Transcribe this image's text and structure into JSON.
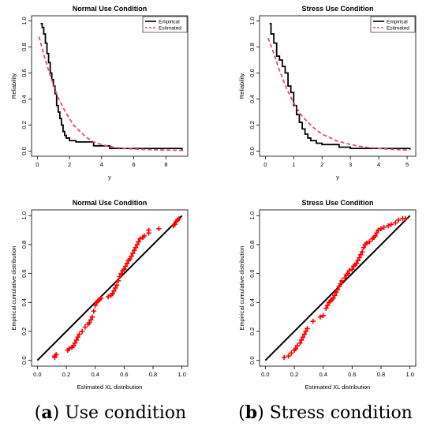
{
  "chart_data": [
    {
      "id": "a-top",
      "type": "line",
      "title": "Normal Use Condition",
      "xlabel": "y",
      "ylabel": "Reliability",
      "xlim": [
        0,
        9
      ],
      "ylim": [
        0,
        1
      ],
      "xticks": [
        0,
        2,
        4,
        6,
        8
      ],
      "yticks": [
        0.0,
        0.2,
        0.4,
        0.6,
        0.8,
        1.0
      ],
      "legend_position": "top-right",
      "series": [
        {
          "name": "Empirical",
          "kind": "step",
          "color": "#000000",
          "x": [
            0.2,
            0.3,
            0.4,
            0.5,
            0.6,
            0.7,
            0.8,
            0.9,
            1.0,
            1.1,
            1.2,
            1.3,
            1.4,
            1.5,
            1.6,
            1.7,
            1.8,
            2.0,
            2.4,
            3.5,
            4.5,
            9.0
          ],
          "y": [
            0.98,
            0.95,
            0.9,
            0.83,
            0.75,
            0.68,
            0.6,
            0.55,
            0.5,
            0.44,
            0.35,
            0.3,
            0.25,
            0.2,
            0.15,
            0.12,
            0.1,
            0.08,
            0.07,
            0.04,
            0.02,
            0.0
          ]
        },
        {
          "name": "Estimated",
          "kind": "dashed",
          "color": "#df536b",
          "x": [
            0.1,
            0.3,
            0.5,
            0.75,
            1.0,
            1.25,
            1.5,
            1.75,
            2.0,
            2.25,
            2.5,
            3.0,
            3.5,
            4.0,
            4.5,
            5.0,
            6.0,
            7.0,
            8.0,
            9.0
          ],
          "y": [
            0.88,
            0.79,
            0.7,
            0.6,
            0.51,
            0.42,
            0.36,
            0.3,
            0.25,
            0.2,
            0.17,
            0.11,
            0.07,
            0.05,
            0.035,
            0.025,
            0.015,
            0.01,
            0.007,
            0.005
          ]
        }
      ]
    },
    {
      "id": "b-top",
      "type": "line",
      "title": "Stress Use Condition",
      "xlabel": "y",
      "ylabel": "Reliability",
      "xlim": [
        0,
        5.1
      ],
      "ylim": [
        0,
        1
      ],
      "xticks": [
        0,
        1,
        2,
        3,
        4,
        5
      ],
      "yticks": [
        0.0,
        0.2,
        0.4,
        0.6,
        0.8,
        1.0
      ],
      "legend_position": "top-right",
      "series": [
        {
          "name": "Empirical",
          "kind": "step",
          "color": "#000000",
          "x": [
            0.15,
            0.2,
            0.3,
            0.4,
            0.5,
            0.6,
            0.7,
            0.8,
            0.9,
            1.0,
            1.1,
            1.2,
            1.3,
            1.4,
            1.5,
            1.6,
            1.8,
            2.0,
            2.6,
            3.0,
            5.1
          ],
          "y": [
            0.98,
            0.9,
            0.83,
            0.73,
            0.7,
            0.65,
            0.6,
            0.5,
            0.45,
            0.35,
            0.28,
            0.22,
            0.17,
            0.13,
            0.1,
            0.08,
            0.06,
            0.05,
            0.03,
            0.02,
            0.01
          ]
        },
        {
          "name": "Estimated",
          "kind": "dashed",
          "color": "#df536b",
          "x": [
            0.1,
            0.25,
            0.5,
            0.75,
            1.0,
            1.25,
            1.5,
            1.75,
            2.0,
            2.5,
            3.0,
            3.5,
            4.0,
            4.5,
            5.0
          ],
          "y": [
            0.87,
            0.78,
            0.62,
            0.48,
            0.37,
            0.28,
            0.22,
            0.17,
            0.13,
            0.08,
            0.05,
            0.03,
            0.02,
            0.012,
            0.008
          ]
        }
      ]
    },
    {
      "id": "a-bottom",
      "type": "scatter",
      "title": "Normal Use Condition",
      "xlabel": "Estimated XL distribution",
      "ylabel": "Empirical cumulative distribution",
      "xlim": [
        0,
        1
      ],
      "ylim": [
        0,
        1
      ],
      "xticks": [
        0.0,
        0.2,
        0.4,
        0.6,
        0.8,
        1.0
      ],
      "yticks": [
        0.0,
        0.2,
        0.4,
        0.6,
        0.8,
        1.0
      ],
      "reference_line": [
        [
          0,
          0
        ],
        [
          1,
          1
        ]
      ],
      "series": [
        {
          "kind": "points",
          "marker": "+",
          "color": "#ff0000",
          "x": [
            0.12,
            0.12,
            0.13,
            0.21,
            0.22,
            0.24,
            0.25,
            0.26,
            0.27,
            0.28,
            0.29,
            0.31,
            0.33,
            0.35,
            0.36,
            0.37,
            0.38,
            0.39,
            0.4,
            0.41,
            0.42,
            0.43,
            0.44,
            0.49,
            0.51,
            0.52,
            0.53,
            0.54,
            0.55,
            0.56,
            0.57,
            0.58,
            0.59,
            0.6,
            0.61,
            0.62,
            0.63,
            0.64,
            0.65,
            0.66,
            0.67,
            0.68,
            0.69,
            0.7,
            0.71,
            0.73,
            0.74,
            0.77,
            0.77,
            0.84,
            0.94,
            0.95,
            0.96,
            0.97,
            0.98
          ],
          "y": [
            0.02,
            0.03,
            0.04,
            0.07,
            0.08,
            0.09,
            0.1,
            0.12,
            0.14,
            0.16,
            0.18,
            0.2,
            0.23,
            0.25,
            0.26,
            0.28,
            0.3,
            0.34,
            0.38,
            0.4,
            0.41,
            0.42,
            0.43,
            0.44,
            0.45,
            0.46,
            0.48,
            0.5,
            0.52,
            0.55,
            0.58,
            0.6,
            0.62,
            0.63,
            0.65,
            0.67,
            0.69,
            0.7,
            0.72,
            0.74,
            0.76,
            0.78,
            0.8,
            0.82,
            0.84,
            0.85,
            0.86,
            0.88,
            0.9,
            0.91,
            0.93,
            0.94,
            0.96,
            0.97,
            0.98
          ]
        }
      ]
    },
    {
      "id": "b-bottom",
      "type": "scatter",
      "title": "Stress Use Condition",
      "xlabel": "Estimated XL distribution",
      "ylabel": "Empirical cumulative distribution",
      "xlim": [
        0,
        1
      ],
      "ylim": [
        0,
        1
      ],
      "xticks": [
        0.0,
        0.2,
        0.4,
        0.6,
        0.8,
        1.0
      ],
      "yticks": [
        0.0,
        0.2,
        0.4,
        0.6,
        0.8,
        1.0
      ],
      "reference_line": [
        [
          0,
          0
        ],
        [
          1,
          1
        ]
      ],
      "series": [
        {
          "kind": "points",
          "marker": "+",
          "color": "#ff0000",
          "x": [
            0.13,
            0.16,
            0.18,
            0.2,
            0.21,
            0.22,
            0.24,
            0.25,
            0.26,
            0.27,
            0.28,
            0.29,
            0.33,
            0.38,
            0.4,
            0.42,
            0.43,
            0.44,
            0.45,
            0.46,
            0.47,
            0.48,
            0.49,
            0.5,
            0.51,
            0.52,
            0.53,
            0.55,
            0.56,
            0.57,
            0.58,
            0.6,
            0.61,
            0.62,
            0.63,
            0.64,
            0.65,
            0.66,
            0.67,
            0.68,
            0.69,
            0.7,
            0.72,
            0.74,
            0.75,
            0.76,
            0.77,
            0.78,
            0.8,
            0.82,
            0.85,
            0.87,
            0.9,
            0.92,
            0.95,
            0.97
          ],
          "y": [
            0.02,
            0.03,
            0.05,
            0.07,
            0.08,
            0.1,
            0.12,
            0.14,
            0.16,
            0.18,
            0.2,
            0.22,
            0.27,
            0.3,
            0.31,
            0.36,
            0.38,
            0.4,
            0.41,
            0.42,
            0.43,
            0.45,
            0.47,
            0.49,
            0.51,
            0.53,
            0.55,
            0.57,
            0.59,
            0.6,
            0.62,
            0.63,
            0.65,
            0.66,
            0.67,
            0.69,
            0.71,
            0.73,
            0.75,
            0.78,
            0.8,
            0.81,
            0.82,
            0.84,
            0.85,
            0.86,
            0.88,
            0.9,
            0.91,
            0.92,
            0.93,
            0.94,
            0.95,
            0.97,
            0.98,
            0.98
          ]
        }
      ]
    }
  ],
  "captions": {
    "a": {
      "letter": "a",
      "text": "Use condition"
    },
    "b": {
      "letter": "b",
      "text": "Stress condition"
    }
  }
}
